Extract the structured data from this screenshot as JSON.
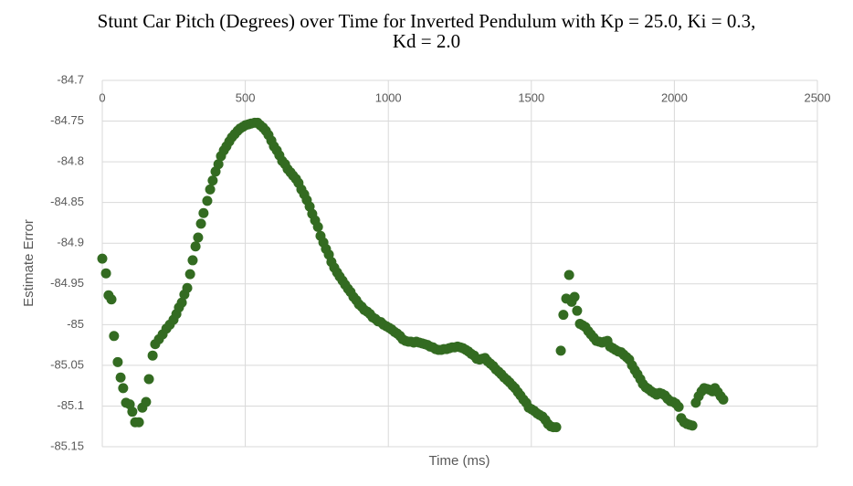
{
  "chart_data": {
    "type": "scatter",
    "title": "Stunt Car Pitch (Degrees) over Time for Inverted Pendulum with Kp = 25.0, Ki = 0.3, Kd = 2.0",
    "x_label": "Time (ms)",
    "y_label": "Estimate Error",
    "color": "#336b21",
    "grid": true,
    "xlim": [
      0,
      2500
    ],
    "xticks": [
      0,
      500,
      1000,
      1500,
      2000,
      2500
    ],
    "ylim": [
      -85.15,
      -84.7
    ],
    "yticks": [
      -84.7,
      -84.75,
      -84.8,
      -84.85,
      -84.9,
      -84.95,
      -85,
      -85.05,
      -85.1,
      -85.15
    ],
    "x": [
      0,
      13,
      22,
      32,
      41,
      54,
      64,
      73,
      83,
      96,
      105,
      115,
      128,
      140,
      153,
      163,
      176,
      185,
      198,
      211,
      224,
      236,
      249,
      259,
      268,
      278,
      287,
      297,
      307,
      316,
      326,
      335,
      345,
      354,
      367,
      377,
      386,
      396,
      406,
      415,
      425,
      434,
      444,
      453,
      463,
      473,
      482,
      492,
      501,
      511,
      520,
      533,
      543,
      552,
      562,
      572,
      581,
      591,
      600,
      610,
      619,
      629,
      639,
      648,
      658,
      667,
      677,
      686,
      696,
      706,
      715,
      725,
      734,
      744,
      754,
      763,
      773,
      782,
      792,
      801,
      811,
      821,
      830,
      840,
      849,
      859,
      868,
      878,
      888,
      897,
      907,
      916,
      926,
      936,
      945,
      955,
      964,
      974,
      983,
      993,
      1003,
      1012,
      1022,
      1031,
      1041,
      1050,
      1060,
      1070,
      1079,
      1089,
      1098,
      1108,
      1118,
      1127,
      1137,
      1146,
      1156,
      1165,
      1175,
      1185,
      1194,
      1204,
      1213,
      1223,
      1232,
      1242,
      1252,
      1261,
      1271,
      1280,
      1290,
      1300,
      1309,
      1319,
      1328,
      1338,
      1347,
      1357,
      1367,
      1376,
      1386,
      1395,
      1405,
      1415,
      1424,
      1434,
      1443,
      1453,
      1462,
      1472,
      1482,
      1491,
      1501,
      1510,
      1520,
      1529,
      1539,
      1549,
      1558,
      1568,
      1577,
      1587,
      1603,
      1612,
      1622,
      1632,
      1641,
      1651,
      1660,
      1670,
      1680,
      1689,
      1699,
      1708,
      1718,
      1727,
      1737,
      1747,
      1756,
      1766,
      1775,
      1785,
      1794,
      1804,
      1814,
      1823,
      1833,
      1842,
      1852,
      1862,
      1871,
      1881,
      1890,
      1900,
      1909,
      1919,
      1929,
      1938,
      1948,
      1957,
      1967,
      1976,
      1986,
      1996,
      2005,
      2015,
      2024,
      2034,
      2044,
      2053,
      2063,
      2075,
      2085,
      2095,
      2104,
      2114,
      2123,
      2133,
      2142,
      2152,
      2162,
      2171
    ],
    "values": [
      -84.919,
      -84.937,
      -84.964,
      -84.969,
      -85.014,
      -85.046,
      -85.065,
      -85.078,
      -85.096,
      -85.098,
      -85.107,
      -85.12,
      -85.12,
      -85.102,
      -85.095,
      -85.067,
      -85.038,
      -85.024,
      -85.018,
      -85.012,
      -85.005,
      -85.0,
      -84.994,
      -84.987,
      -84.979,
      -84.973,
      -84.963,
      -84.955,
      -84.938,
      -84.921,
      -84.904,
      -84.893,
      -84.876,
      -84.863,
      -84.848,
      -84.834,
      -84.823,
      -84.812,
      -84.803,
      -84.793,
      -84.786,
      -84.781,
      -84.775,
      -84.77,
      -84.766,
      -84.762,
      -84.759,
      -84.757,
      -84.755,
      -84.754,
      -84.753,
      -84.752,
      -84.752,
      -84.755,
      -84.758,
      -84.762,
      -84.767,
      -84.774,
      -84.781,
      -84.786,
      -84.792,
      -84.799,
      -84.803,
      -84.809,
      -84.813,
      -84.817,
      -84.821,
      -84.826,
      -84.834,
      -84.84,
      -84.847,
      -84.855,
      -84.864,
      -84.872,
      -84.88,
      -84.891,
      -84.899,
      -84.907,
      -84.914,
      -84.923,
      -84.93,
      -84.936,
      -84.941,
      -84.946,
      -84.951,
      -84.956,
      -84.96,
      -84.966,
      -84.97,
      -84.975,
      -84.978,
      -84.982,
      -84.984,
      -84.987,
      -84.991,
      -84.993,
      -84.996,
      -84.997,
      -85.0,
      -85.002,
      -85.004,
      -85.006,
      -85.009,
      -85.011,
      -85.014,
      -85.018,
      -85.02,
      -85.021,
      -85.021,
      -85.022,
      -85.021,
      -85.022,
      -85.023,
      -85.024,
      -85.025,
      -85.027,
      -85.028,
      -85.03,
      -85.031,
      -85.031,
      -85.03,
      -85.03,
      -85.029,
      -85.028,
      -85.028,
      -85.027,
      -85.028,
      -85.029,
      -85.031,
      -85.033,
      -85.036,
      -85.038,
      -85.042,
      -85.043,
      -85.042,
      -85.041,
      -85.045,
      -85.048,
      -85.051,
      -85.055,
      -85.058,
      -85.061,
      -85.065,
      -85.068,
      -85.071,
      -85.075,
      -85.078,
      -85.083,
      -85.087,
      -85.092,
      -85.096,
      -85.102,
      -85.104,
      -85.106,
      -85.109,
      -85.111,
      -85.113,
      -85.117,
      -85.122,
      -85.125,
      -85.126,
      -85.126,
      -85.032,
      -84.988,
      -84.968,
      -84.939,
      -84.972,
      -84.966,
      -84.983,
      -84.999,
      -85.001,
      -85.003,
      -85.008,
      -85.012,
      -85.016,
      -85.02,
      -85.021,
      -85.022,
      -85.021,
      -85.02,
      -85.027,
      -85.029,
      -85.031,
      -85.033,
      -85.034,
      -85.037,
      -85.04,
      -85.043,
      -85.05,
      -85.056,
      -85.061,
      -85.067,
      -85.073,
      -85.077,
      -85.079,
      -85.082,
      -85.084,
      -85.086,
      -85.084,
      -85.085,
      -85.087,
      -85.091,
      -85.094,
      -85.095,
      -85.097,
      -85.101,
      -85.115,
      -85.12,
      -85.122,
      -85.123,
      -85.124,
      -85.096,
      -85.088,
      -85.082,
      -85.078,
      -85.079,
      -85.08,
      -85.082,
      -85.078,
      -85.083,
      -85.088,
      -85.092
    ]
  }
}
